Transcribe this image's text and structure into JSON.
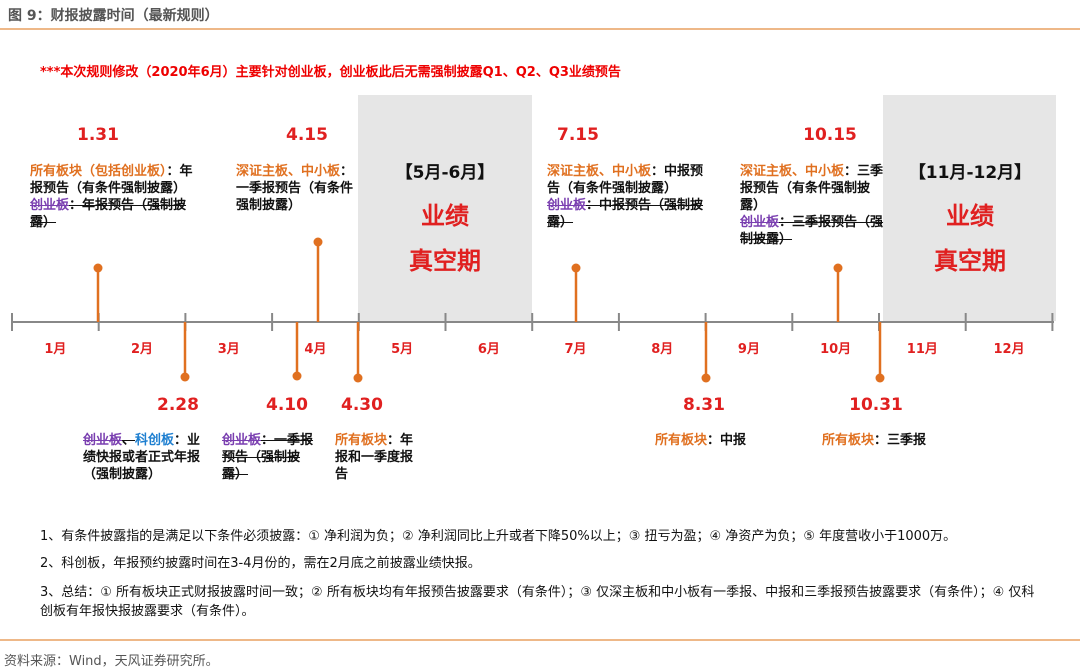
{
  "header": {
    "title": "图 9：财报披露时间（最新规则）"
  },
  "note": "***本次规则修改（2020年6月）主要针对创业板，创业板此后无需强制披露Q1、Q2、Q3业绩预告",
  "vacuum": [
    {
      "range": "【5月-6月】",
      "line1": "业绩",
      "line2": "真空期"
    },
    {
      "range": "【11月-12月】",
      "line1": "业绩",
      "line2": "真空期"
    }
  ],
  "months": [
    "1月",
    "2月",
    "3月",
    "4月",
    "5月",
    "6月",
    "7月",
    "8月",
    "9月",
    "10月",
    "11月",
    "12月"
  ],
  "events": [
    {
      "date": "1.31",
      "desc": [
        {
          "text": "所有板块（包括创业板）",
          "style": "orange"
        },
        {
          "text": "：年报预告（有条件强制披露）",
          "style": "black"
        },
        {
          "text": "创业板",
          "style": "purple-strike",
          "newline": true
        },
        {
          "text": "：年报预告（强制披露）",
          "style": "black-strike"
        }
      ]
    },
    {
      "date": "4.15",
      "desc": [
        {
          "text": "深证主板、中小板",
          "style": "orange"
        },
        {
          "text": "：一季报预告（有条件强制披露）",
          "style": "black"
        }
      ]
    },
    {
      "date": "7.15",
      "desc": [
        {
          "text": "深证主板、中小板",
          "style": "orange"
        },
        {
          "text": "：中报预告（有条件强制披露）",
          "style": "black"
        },
        {
          "text": "创业板",
          "style": "purple-strike",
          "newline": true
        },
        {
          "text": "：中报预告（强制披露）",
          "style": "black-strike"
        }
      ]
    },
    {
      "date": "10.15",
      "desc": [
        {
          "text": "深证主板、中小板",
          "style": "orange"
        },
        {
          "text": "：三季报预告（有条件强制披露）",
          "style": "black"
        },
        {
          "text": "创业板",
          "style": "purple-strike",
          "newline": true
        },
        {
          "text": "：三季报预告（强制披露）",
          "style": "black-strike"
        }
      ]
    },
    {
      "date": "2.28",
      "desc": [
        {
          "text": "创业板",
          "style": "purple-strike"
        },
        {
          "text": "、",
          "style": "black-strike"
        },
        {
          "text": "科创板",
          "style": "blue"
        },
        {
          "text": "：业绩快报或者正式年报（强制披露）",
          "style": "black"
        }
      ]
    },
    {
      "date": "4.10",
      "desc": [
        {
          "text": "创业板",
          "style": "purple-strike"
        },
        {
          "text": "：一季报预告（强制披露）",
          "style": "black-strike"
        }
      ]
    },
    {
      "date": "4.30",
      "desc": [
        {
          "text": "所有板块",
          "style": "orange"
        },
        {
          "text": "：年报和一季度报告",
          "style": "black"
        }
      ]
    },
    {
      "date": "8.31",
      "desc": [
        {
          "text": "所有板块",
          "style": "orange"
        },
        {
          "text": "：中报",
          "style": "black"
        }
      ]
    },
    {
      "date": "10.31",
      "desc": [
        {
          "text": "所有板块",
          "style": "orange"
        },
        {
          "text": "：三季报",
          "style": "black"
        }
      ]
    }
  ],
  "footnotes": [
    "1、有条件披露指的是满足以下条件必须披露：① 净利润为负；② 净利润同比上升或者下降50%以上；③ 扭亏为盈；④ 净资产为负；⑤ 年度营收小于1000万。",
    "2、科创板，年报预约披露时间在3-4月份的，需在2月底之前披露业绩快报。",
    "3、总结：① 所有板块正式财报披露时间一致；② 所有板块均有年报预告披露要求（有条件）；③ 仅深主板和中小板有一季报、中报和三季报预告披露要求（有条件）；④ 仅科创板有年报快报披露要求（有条件）。"
  ],
  "source": "资料来源：Wind，天风证券研究所。"
}
